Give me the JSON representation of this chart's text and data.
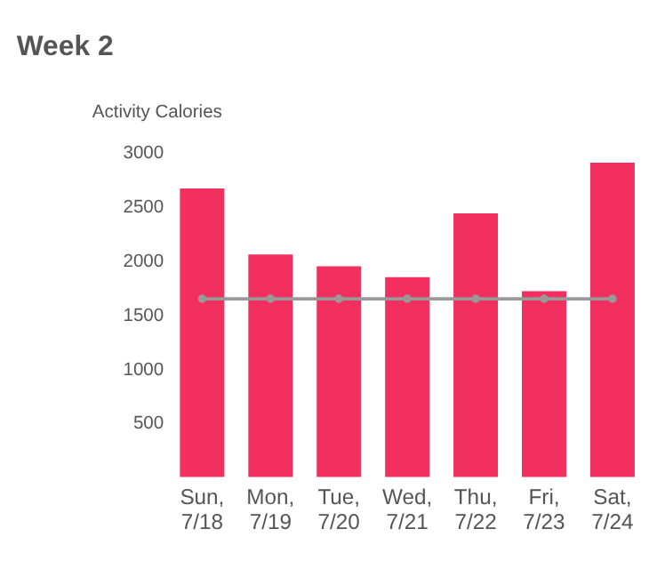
{
  "chart_data": {
    "type": "bar",
    "title": "Week 2",
    "ylabel": "Activity Calories",
    "categories": [
      "Sun, 7/18",
      "Mon, 7/19",
      "Tue, 7/20",
      "Wed, 7/21",
      "Thu, 7/22",
      "Fri, 7/23",
      "Sat, 7/24"
    ],
    "series": [
      {
        "color": "#f2305f",
        "values": [
          2670,
          2060,
          1950,
          1850,
          2440,
          1720,
          2910
        ]
      },
      {
        "type": "line",
        "color": "#999999",
        "marker": "circle",
        "values": [
          1650,
          1650,
          1650,
          1650,
          1650,
          1650,
          1650
        ]
      }
    ],
    "ylim": [
      0,
      3000
    ],
    "yticks": [
      500,
      1000,
      1500,
      2000,
      2500,
      3000
    ]
  }
}
